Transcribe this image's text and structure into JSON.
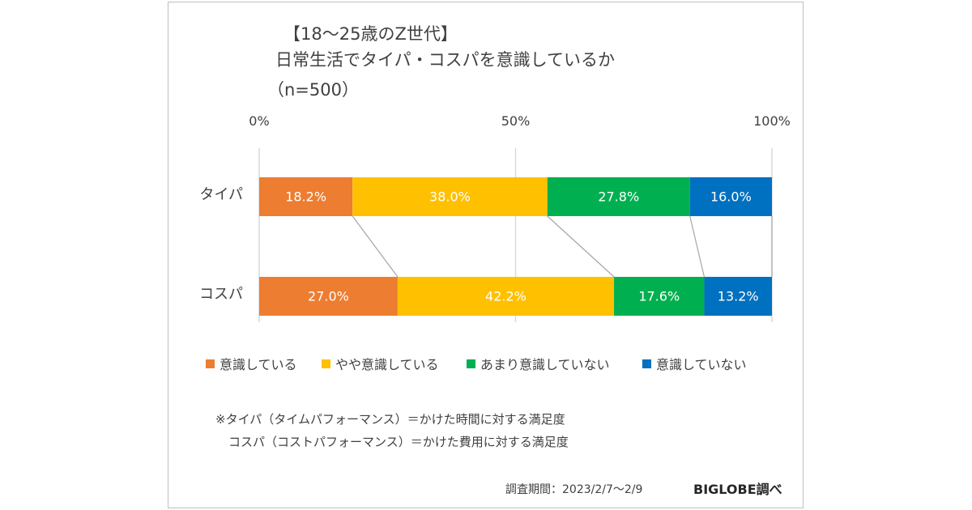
{
  "title": {
    "line1": "【18～25歳のZ世代】",
    "line2": "日常生活でタイパ・コスパを意識しているか",
    "line3": "（n=500）"
  },
  "colors": {
    "series": [
      "#ED7D31",
      "#FFC000",
      "#00B050",
      "#0070C0"
    ],
    "grid": "#d9d9d9",
    "connector": "#a6a6a6",
    "label_text": "#ffffff"
  },
  "chart_data": {
    "type": "bar",
    "orientation": "horizontal",
    "stacked": true,
    "percent_stacked": true,
    "categories": [
      "タイパ",
      "コスパ"
    ],
    "series": [
      {
        "name": "意識している",
        "values": [
          18.2,
          27.0
        ],
        "labels": [
          "18.2%",
          "27.0%"
        ]
      },
      {
        "name": "やや意識している",
        "values": [
          38.0,
          42.2
        ],
        "labels": [
          "38.0%",
          "42.2%"
        ]
      },
      {
        "name": "あまり意識していない",
        "values": [
          27.8,
          17.6
        ],
        "labels": [
          "27.8%",
          "17.6%"
        ]
      },
      {
        "name": "意識していない",
        "values": [
          16.0,
          13.2
        ],
        "labels": [
          "16.0%",
          "13.2%"
        ]
      }
    ],
    "x_ticks": [
      0,
      50,
      100
    ],
    "x_tick_labels": [
      "0%",
      "50%",
      "100%"
    ],
    "xlim": [
      0,
      100
    ],
    "grid": true,
    "series_lines": true,
    "legend_position": "bottom"
  },
  "notes": {
    "line1": "※タイパ（タイムパフォーマンス）＝かけた時間に対する満足度",
    "line2": "コスパ（コストパフォーマンス）＝かけた費用に対する満足度"
  },
  "footer": {
    "period": "調査期間：2023/2/7～2/9",
    "source": "BIGLOBE調べ"
  }
}
